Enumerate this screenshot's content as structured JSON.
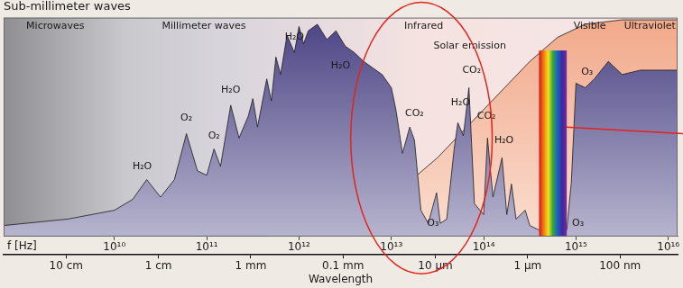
{
  "chart_data": {
    "type": "area",
    "title": "Sub-millimeter waves",
    "log": "x",
    "grid": false,
    "tick_labels": "x",
    "xlabel": "f [Hz]",
    "xlim": [
      631000000.0,
      1.26e+16
    ],
    "xticks": [
      {
        "value": 10000000000.0,
        "label": "10¹⁰"
      },
      {
        "value": 100000000000.0,
        "label": "10¹¹"
      },
      {
        "value": 1000000000000.0,
        "label": "10¹²"
      },
      {
        "value": 10000000000000.0,
        "label": "10¹³"
      },
      {
        "value": 100000000000000.0,
        "label": "10¹⁴"
      },
      {
        "value": 1000000000000000.0,
        "label": "10¹⁵"
      },
      {
        "value": 1e+16,
        "label": "10¹⁶"
      }
    ],
    "x2label": "Wavelength",
    "x2lim": [
      631000000.0,
      1.26e+16
    ],
    "x2ticks": [
      {
        "value": 3000000000.0,
        "label": "10 cm"
      },
      {
        "value": 30000000000.0,
        "label": "1 cm"
      },
      {
        "value": 300000000000.0,
        "label": "1 mm"
      },
      {
        "value": 3000000000000.0,
        "label": "0.1 mm"
      },
      {
        "value": 30000000000000.0,
        "label": "10 µm"
      },
      {
        "value": 300000000000000.0,
        "label": "1 µm"
      },
      {
        "value": 3000000000000000.0,
        "label": "100 nm"
      }
    ],
    "ylim": [
      0,
      100
    ],
    "series": [
      {
        "color": "#4b4384",
        "x": [
          631000000.0,
          3160000000.0,
          10000000000.0,
          15800000000.0,
          22400000000.0,
          31600000000.0,
          44700000000.0,
          60300000000.0,
          79400000000.0,
          100000000000.0,
          120000000000.0,
          141000000000.0,
          182000000000.0,
          224000000000.0,
          282000000000.0,
          316000000000.0,
          355000000000.0,
          447000000000.0,
          501000000000.0,
          562000000000.0,
          631000000000.0,
          741000000000.0,
          891000000000.0,
          1000000000000.0,
          1120000000000.0,
          1260000000000.0,
          1580000000000.0,
          2000000000000.0,
          2510000000000.0,
          3160000000000.0,
          3980000000000.0,
          5010000000000.0,
          6310000000000.0,
          7940000000000.0,
          10000000000000.0,
          11200000000000.0,
          13200000000000.0,
          15800000000000.0,
          17800000000000.0,
          20900000000000.0,
          25100000000000.0,
          30900000000000.0,
          33900000000000.0,
          39800000000000.0,
          47900000000000.0,
          52500000000000.0,
          60300000000000.0,
          69200000000000.0,
          79400000000000.0,
          100000000000000.0,
          110000000000000.0,
          126000000000000.0,
          158000000000000.0,
          178000000000000.0,
          200000000000000.0,
          224000000000000.0,
          282000000000000.0,
          316000000000000.0,
          398000000000000.0,
          794000000000000.0,
          891000000000000.0,
          1000000000000000.0,
          1260000000000000.0,
          1580000000000000.0,
          2240000000000000.0,
          3160000000000000.0,
          5010000000000000.0,
          1.26e+16
        ],
        "values": [
          5,
          8,
          12,
          17,
          26,
          18,
          26,
          47,
          30,
          28,
          40,
          32,
          60,
          45,
          55,
          63,
          50,
          72,
          62,
          82,
          74,
          92,
          84,
          96,
          88,
          94,
          97,
          90,
          94,
          87,
          84,
          80,
          77,
          74,
          68,
          58,
          38,
          50,
          44,
          12,
          6,
          20,
          6,
          8,
          40,
          52,
          46,
          68,
          15,
          10,
          45,
          18,
          36,
          10,
          24,
          8,
          12,
          5,
          3,
          3,
          25,
          70,
          68,
          72,
          80,
          74,
          76,
          76
        ]
      },
      {
        "color": "#f2a98a",
        "x": [
          1000000000000.0,
          3160000000000.0,
          10000000000000.0,
          31600000000000.0,
          100000000000000.0,
          316000000000000.0,
          631000000000000.0,
          1260000000000000.0,
          3160000000000000.0,
          1.26e+16
        ],
        "values": [
          0,
          6,
          18,
          36,
          58,
          80,
          91,
          97,
          99,
          99
        ]
      }
    ],
    "visible_range": [
      398000000000000.0,
      794000000000000.0
    ],
    "annotations": [
      {
        "text": "Microwaves",
        "x": 2290000000.0,
        "y": 96
      },
      {
        "text": "Millimeter waves",
        "x": 93300000000.0,
        "y": 96
      },
      {
        "text": "Infrared",
        "x": 22400000000000.0,
        "y": 96
      },
      {
        "text": "Visible",
        "x": 1410000000000000.0,
        "y": 96
      },
      {
        "text": "Ultraviolet",
        "x": 6310000000000000.0,
        "y": 96
      },
      {
        "text": "Solar emission",
        "x": 70800000000000.0,
        "y": 87
      },
      {
        "text": "H₂O",
        "x": 20000000000.0,
        "y": 32
      },
      {
        "text": "O₂",
        "x": 60300000000.0,
        "y": 54
      },
      {
        "text": "O₂",
        "x": 120000000000.0,
        "y": 46
      },
      {
        "text": "H₂O",
        "x": 182000000000.0,
        "y": 67
      },
      {
        "text": "H₂O",
        "x": 891000000000.0,
        "y": 91
      },
      {
        "text": "H₂O",
        "x": 2820000000000.0,
        "y": 78
      },
      {
        "text": "CO₂",
        "x": 17800000000000.0,
        "y": 56
      },
      {
        "text": "O₃",
        "x": 28200000000000.0,
        "y": 6
      },
      {
        "text": "H₂O",
        "x": 56200000000000.0,
        "y": 61
      },
      {
        "text": "CO₂",
        "x": 74100000000000.0,
        "y": 76
      },
      {
        "text": "CO₂",
        "x": 107000000000000.0,
        "y": 55
      },
      {
        "text": "H₂O",
        "x": 166000000000000.0,
        "y": 44
      },
      {
        "text": "O₃",
        "x": 1320000000000000.0,
        "y": 75
      },
      {
        "text": "O₃",
        "x": 1050000000000000.0,
        "y": 6
      }
    ]
  }
}
